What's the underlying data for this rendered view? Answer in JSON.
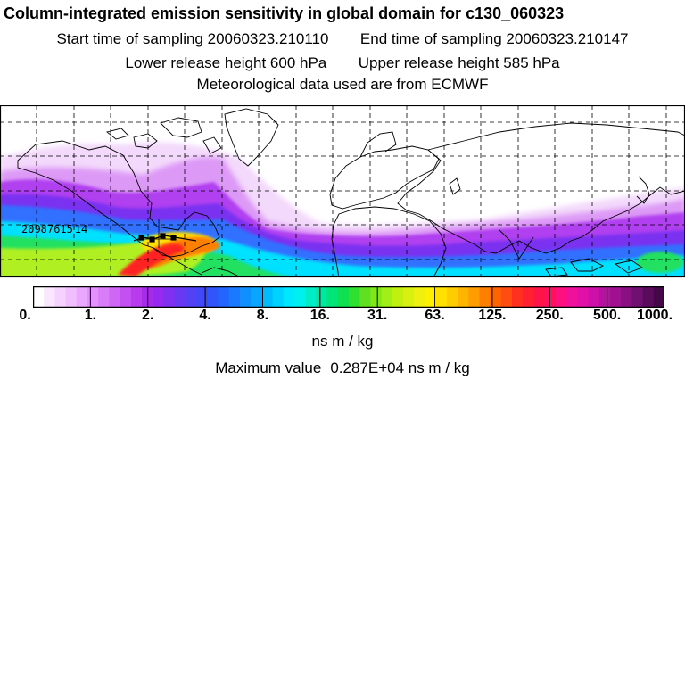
{
  "header": {
    "title": "Column-integrated emission sensitivity in global domain for c130_060323",
    "start_label": "Start time of sampling",
    "start_value": "20060323.210110",
    "end_label": "End time of sampling",
    "end_value": "20060323.210147",
    "lower_label": "Lower release height",
    "lower_value": "600 hPa",
    "upper_label": "Upper release height",
    "upper_value": "585 hPa",
    "met_line": "Meteorological data used are from ECMWF"
  },
  "map": {
    "annotation_text": "20987615",
    "annotation_suffix": "14",
    "grid_style": "dashed",
    "plume_colors": {
      "faint": "#f3d9fb",
      "light": "#dd99f6",
      "purple": "#b040f0",
      "violet": "#7a30f0",
      "blue": "#3070ff",
      "cyan": "#00e0ff",
      "green": "#20e060",
      "lime": "#b0f020",
      "yellow": "#ffe000",
      "orange": "#ff8000",
      "red": "#ff2020"
    }
  },
  "colorbar": {
    "colors": [
      "#ffffff",
      "#fbe6ff",
      "#f6d2fe",
      "#f0bdfd",
      "#eaa8fc",
      "#e292fa",
      "#d97cf8",
      "#cf66f5",
      "#c450f2",
      "#b83cee",
      "#a82aeb",
      "#962aee",
      "#8030f0",
      "#6a38f2",
      "#5540f5",
      "#4048f8",
      "#2f55fb",
      "#2466fd",
      "#1a7aff",
      "#108fff",
      "#08a6ff",
      "#00bcff",
      "#00d2ff",
      "#00e8ff",
      "#00f0f0",
      "#00ecc8",
      "#00e8a0",
      "#00e478",
      "#10e050",
      "#30e030",
      "#60e020",
      "#80e818",
      "#a0f018",
      "#c0f010",
      "#d8f010",
      "#f0f010",
      "#fff000",
      "#ffe000",
      "#ffcc00",
      "#ffb400",
      "#ff9c00",
      "#ff8000",
      "#ff6400",
      "#ff4c10",
      "#ff3020",
      "#ff2030",
      "#ff1448",
      "#ff1060",
      "#ff1080",
      "#f0109a",
      "#e010a8",
      "#cc10a8",
      "#b810a0",
      "#a01090",
      "#881080",
      "#701070",
      "#5a0c5c",
      "#440848"
    ],
    "ticks": [
      "0.",
      "1.",
      "2.",
      "4.",
      "8.",
      "16.",
      "31.",
      "63.",
      "125.",
      "250.",
      "500.",
      "1000."
    ],
    "units": "ns m / kg",
    "max_label": "Maximum value",
    "max_value": "0.287E+04 ns m / kg"
  }
}
